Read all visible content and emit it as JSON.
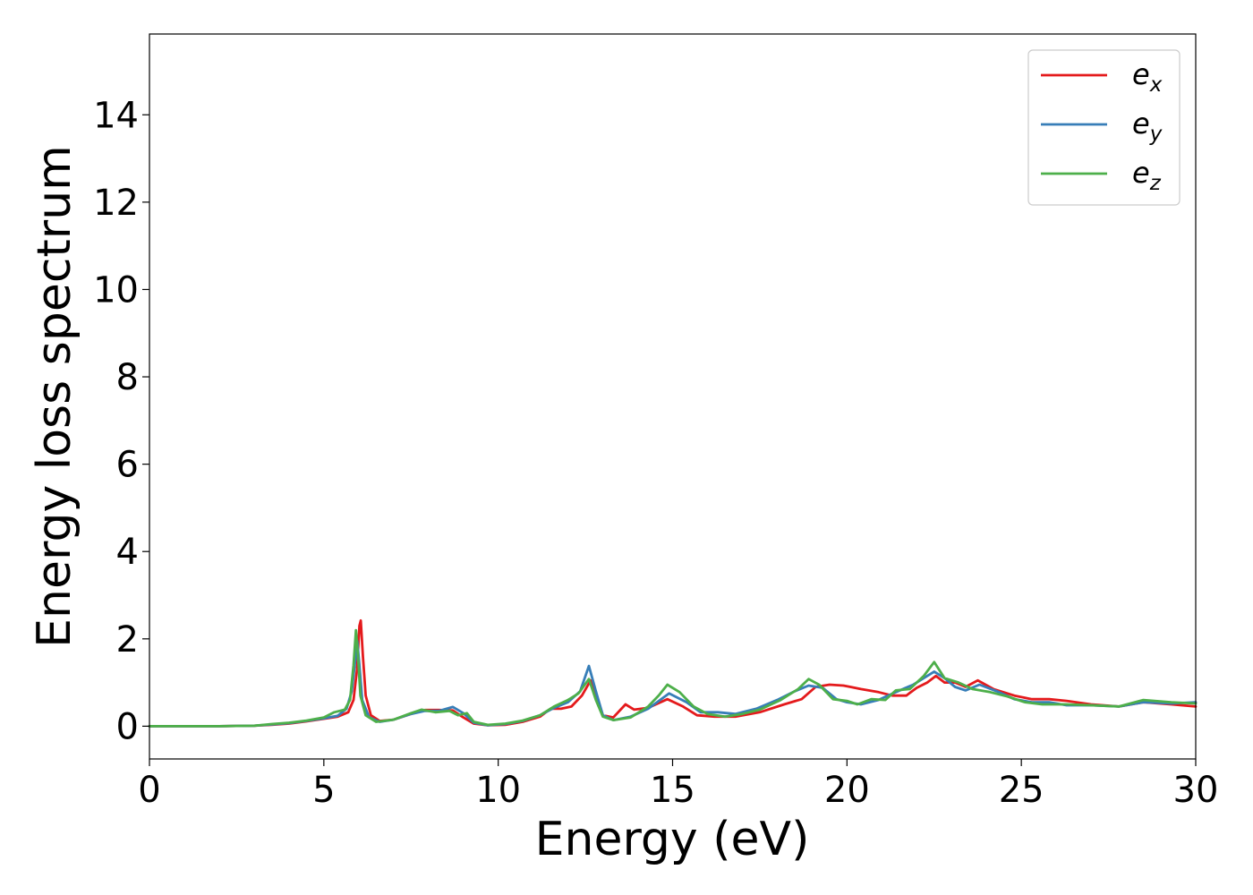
{
  "chart_data": {
    "type": "line",
    "title": "",
    "xlabel": "Energy (eV)",
    "ylabel": "Energy loss spectrum",
    "xlim": [
      0,
      30
    ],
    "ylim": [
      -0.75,
      15.85
    ],
    "xticks": [
      0,
      5,
      10,
      15,
      20,
      25,
      30
    ],
    "yticks": [
      0,
      2,
      4,
      6,
      8,
      10,
      12,
      14
    ],
    "grid": false,
    "legend_position": "top-right",
    "series": [
      {
        "name": "e_x",
        "label_main": "e",
        "label_sub": "x",
        "color": "#e41a1c",
        "points": [
          [
            0,
            0
          ],
          [
            1,
            0
          ],
          [
            2,
            0
          ],
          [
            3,
            0.01
          ],
          [
            3.5,
            0.03
          ],
          [
            4,
            0.06
          ],
          [
            4.5,
            0.11
          ],
          [
            5,
            0.17
          ],
          [
            5.4,
            0.22
          ],
          [
            5.7,
            0.32
          ],
          [
            5.85,
            0.6
          ],
          [
            5.95,
            1.3
          ],
          [
            6.02,
            2.3
          ],
          [
            6.06,
            2.42
          ],
          [
            6.12,
            1.6
          ],
          [
            6.2,
            0.7
          ],
          [
            6.35,
            0.25
          ],
          [
            6.6,
            0.12
          ],
          [
            7,
            0.15
          ],
          [
            7.5,
            0.28
          ],
          [
            7.9,
            0.37
          ],
          [
            8.3,
            0.37
          ],
          [
            8.7,
            0.36
          ],
          [
            9.0,
            0.2
          ],
          [
            9.3,
            0.06
          ],
          [
            9.7,
            0.02
          ],
          [
            10.2,
            0.03
          ],
          [
            10.7,
            0.1
          ],
          [
            11.2,
            0.22
          ],
          [
            11.5,
            0.4
          ],
          [
            11.8,
            0.4
          ],
          [
            12.1,
            0.45
          ],
          [
            12.4,
            0.7
          ],
          [
            12.65,
            1.05
          ],
          [
            12.85,
            0.6
          ],
          [
            13.0,
            0.25
          ],
          [
            13.3,
            0.2
          ],
          [
            13.65,
            0.5
          ],
          [
            13.9,
            0.38
          ],
          [
            14.3,
            0.42
          ],
          [
            14.85,
            0.62
          ],
          [
            15.3,
            0.45
          ],
          [
            15.7,
            0.25
          ],
          [
            16.2,
            0.22
          ],
          [
            16.8,
            0.22
          ],
          [
            17.5,
            0.32
          ],
          [
            18.2,
            0.5
          ],
          [
            18.7,
            0.62
          ],
          [
            19.1,
            0.9
          ],
          [
            19.5,
            0.95
          ],
          [
            19.9,
            0.93
          ],
          [
            20.1,
            0.9
          ],
          [
            20.4,
            0.85
          ],
          [
            20.9,
            0.78
          ],
          [
            21.3,
            0.7
          ],
          [
            21.7,
            0.7
          ],
          [
            22.0,
            0.88
          ],
          [
            22.3,
            1.0
          ],
          [
            22.55,
            1.15
          ],
          [
            22.8,
            1.0
          ],
          [
            23.1,
            1.0
          ],
          [
            23.4,
            0.9
          ],
          [
            23.75,
            1.05
          ],
          [
            24.2,
            0.85
          ],
          [
            24.8,
            0.7
          ],
          [
            25.3,
            0.62
          ],
          [
            25.8,
            0.62
          ],
          [
            26.3,
            0.58
          ],
          [
            27.0,
            0.5
          ],
          [
            27.8,
            0.45
          ],
          [
            28.5,
            0.55
          ],
          [
            29.3,
            0.5
          ],
          [
            30,
            0.45
          ]
        ]
      },
      {
        "name": "e_y",
        "label_main": "e",
        "label_sub": "y",
        "color": "#377eb8",
        "points": [
          [
            0,
            0
          ],
          [
            1,
            0
          ],
          [
            2,
            0
          ],
          [
            3,
            0.01
          ],
          [
            3.5,
            0.04
          ],
          [
            4,
            0.07
          ],
          [
            4.5,
            0.12
          ],
          [
            5,
            0.18
          ],
          [
            5.4,
            0.24
          ],
          [
            5.65,
            0.4
          ],
          [
            5.8,
            0.8
          ],
          [
            5.9,
            1.5
          ],
          [
            5.96,
            1.95
          ],
          [
            6.02,
            1.4
          ],
          [
            6.1,
            0.6
          ],
          [
            6.3,
            0.2
          ],
          [
            6.6,
            0.1
          ],
          [
            7,
            0.15
          ],
          [
            7.5,
            0.28
          ],
          [
            7.9,
            0.35
          ],
          [
            8.3,
            0.35
          ],
          [
            8.7,
            0.44
          ],
          [
            9.0,
            0.3
          ],
          [
            9.3,
            0.08
          ],
          [
            9.7,
            0.02
          ],
          [
            10.2,
            0.05
          ],
          [
            10.7,
            0.12
          ],
          [
            11.2,
            0.25
          ],
          [
            11.6,
            0.42
          ],
          [
            12.0,
            0.55
          ],
          [
            12.35,
            0.8
          ],
          [
            12.6,
            1.38
          ],
          [
            12.8,
            0.8
          ],
          [
            13.0,
            0.25
          ],
          [
            13.3,
            0.14
          ],
          [
            13.8,
            0.22
          ],
          [
            14.3,
            0.4
          ],
          [
            14.9,
            0.75
          ],
          [
            15.4,
            0.55
          ],
          [
            15.8,
            0.32
          ],
          [
            16.3,
            0.32
          ],
          [
            16.8,
            0.28
          ],
          [
            17.4,
            0.4
          ],
          [
            18.0,
            0.6
          ],
          [
            18.5,
            0.8
          ],
          [
            18.9,
            0.93
          ],
          [
            19.3,
            0.88
          ],
          [
            19.7,
            0.62
          ],
          [
            20.0,
            0.55
          ],
          [
            20.4,
            0.5
          ],
          [
            20.9,
            0.6
          ],
          [
            21.4,
            0.78
          ],
          [
            21.9,
            0.95
          ],
          [
            22.2,
            1.1
          ],
          [
            22.5,
            1.25
          ],
          [
            22.8,
            1.1
          ],
          [
            23.1,
            0.9
          ],
          [
            23.4,
            0.82
          ],
          [
            23.8,
            0.95
          ],
          [
            24.3,
            0.8
          ],
          [
            24.8,
            0.62
          ],
          [
            25.3,
            0.55
          ],
          [
            25.8,
            0.55
          ],
          [
            26.3,
            0.48
          ],
          [
            27.0,
            0.48
          ],
          [
            27.8,
            0.45
          ],
          [
            28.5,
            0.55
          ],
          [
            29.3,
            0.52
          ],
          [
            30,
            0.55
          ]
        ]
      },
      {
        "name": "e_z",
        "label_main": "e",
        "label_sub": "z",
        "color": "#4daf4a",
        "points": [
          [
            0,
            0
          ],
          [
            1,
            0
          ],
          [
            2,
            0
          ],
          [
            3,
            0.01
          ],
          [
            3.5,
            0.05
          ],
          [
            4,
            0.08
          ],
          [
            4.5,
            0.13
          ],
          [
            5,
            0.2
          ],
          [
            5.3,
            0.32
          ],
          [
            5.6,
            0.38
          ],
          [
            5.75,
            0.6
          ],
          [
            5.85,
            1.4
          ],
          [
            5.92,
            2.2
          ],
          [
            5.98,
            1.6
          ],
          [
            6.05,
            0.7
          ],
          [
            6.2,
            0.25
          ],
          [
            6.5,
            0.1
          ],
          [
            7,
            0.15
          ],
          [
            7.5,
            0.3
          ],
          [
            7.8,
            0.38
          ],
          [
            8.2,
            0.32
          ],
          [
            8.6,
            0.35
          ],
          [
            8.85,
            0.25
          ],
          [
            9.1,
            0.3
          ],
          [
            9.3,
            0.1
          ],
          [
            9.7,
            0.03
          ],
          [
            10.2,
            0.06
          ],
          [
            10.7,
            0.13
          ],
          [
            11.2,
            0.25
          ],
          [
            11.6,
            0.45
          ],
          [
            12.0,
            0.6
          ],
          [
            12.3,
            0.75
          ],
          [
            12.6,
            1.08
          ],
          [
            12.8,
            0.6
          ],
          [
            13.0,
            0.22
          ],
          [
            13.3,
            0.14
          ],
          [
            13.8,
            0.2
          ],
          [
            14.3,
            0.45
          ],
          [
            14.6,
            0.7
          ],
          [
            14.85,
            0.95
          ],
          [
            15.2,
            0.78
          ],
          [
            15.6,
            0.45
          ],
          [
            16.0,
            0.28
          ],
          [
            16.5,
            0.22
          ],
          [
            17.0,
            0.28
          ],
          [
            17.5,
            0.38
          ],
          [
            18.1,
            0.6
          ],
          [
            18.6,
            0.85
          ],
          [
            18.9,
            1.08
          ],
          [
            19.2,
            0.95
          ],
          [
            19.6,
            0.62
          ],
          [
            20.0,
            0.58
          ],
          [
            20.3,
            0.5
          ],
          [
            20.7,
            0.62
          ],
          [
            21.1,
            0.6
          ],
          [
            21.4,
            0.82
          ],
          [
            21.8,
            0.85
          ],
          [
            22.2,
            1.15
          ],
          [
            22.5,
            1.47
          ],
          [
            22.8,
            1.1
          ],
          [
            23.2,
            1.0
          ],
          [
            23.6,
            0.85
          ],
          [
            24.1,
            0.78
          ],
          [
            24.6,
            0.68
          ],
          [
            25.1,
            0.55
          ],
          [
            25.6,
            0.5
          ],
          [
            26.3,
            0.5
          ],
          [
            27.0,
            0.48
          ],
          [
            27.8,
            0.45
          ],
          [
            28.5,
            0.6
          ],
          [
            29.3,
            0.55
          ],
          [
            30,
            0.52
          ]
        ]
      }
    ]
  }
}
